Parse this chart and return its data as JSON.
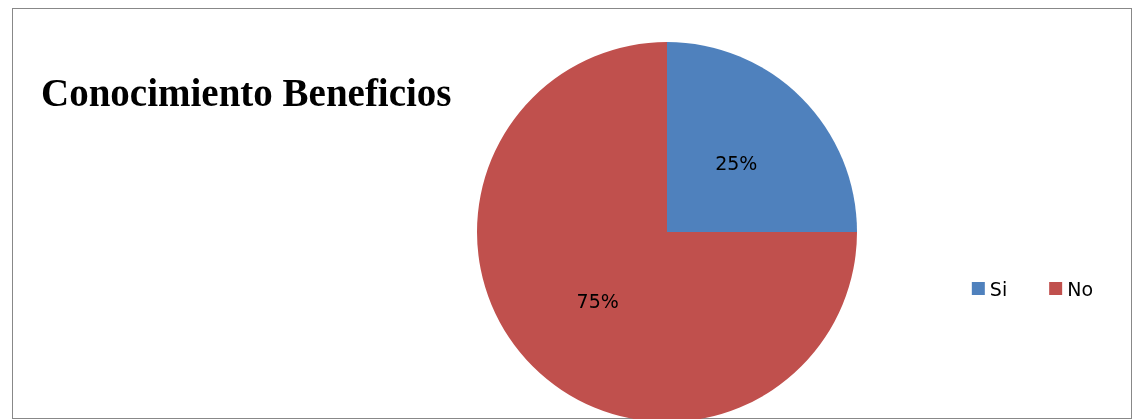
{
  "chart_data": {
    "type": "pie",
    "title": "Conocimiento Beneficios",
    "categories": [
      "Si",
      "No"
    ],
    "values": [
      25,
      75
    ],
    "colors": [
      "#4f81bd",
      "#c0504d"
    ],
    "value_labels": [
      "25%",
      "75%"
    ],
    "legend": "right"
  }
}
